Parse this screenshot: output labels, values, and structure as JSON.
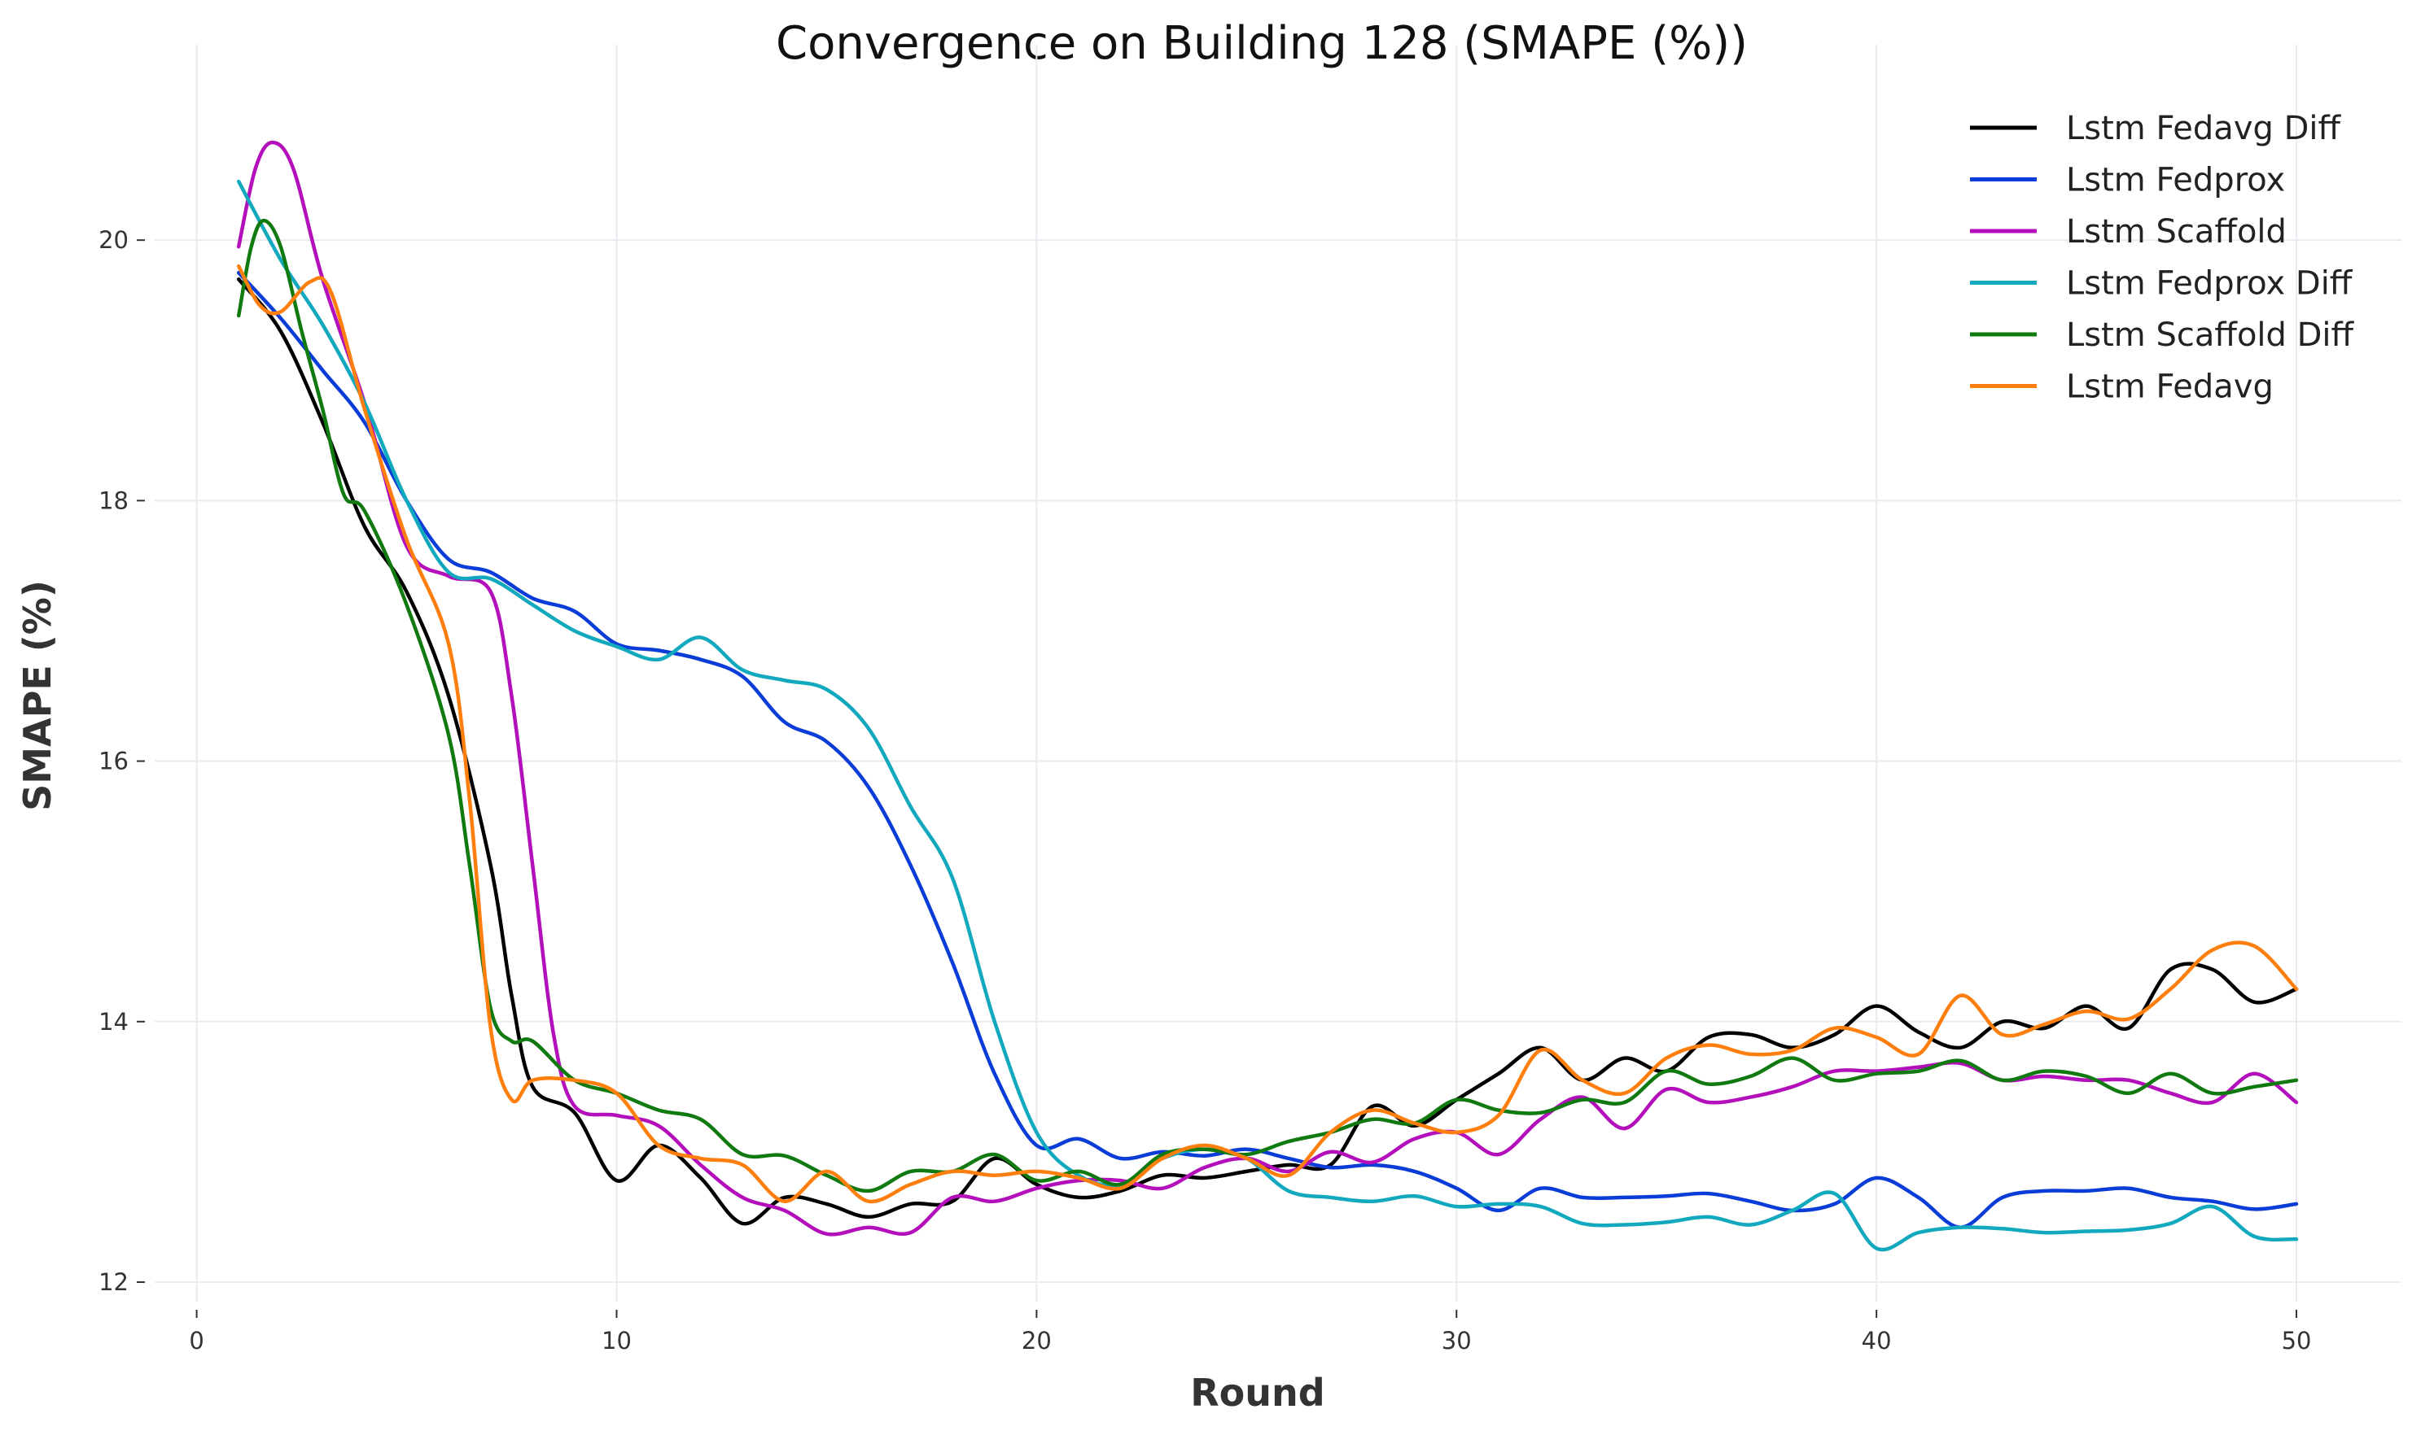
{
  "chart_data": {
    "type": "line",
    "title": "Convergence on Building 128 (SMAPE (%))",
    "xlabel": "Round",
    "ylabel": "SMAPE (%)",
    "xlim": [
      -1,
      52.5
    ],
    "ylim": [
      11.85,
      21.5
    ],
    "xticks": [
      0,
      10,
      20,
      30,
      40,
      50
    ],
    "yticks": [
      12,
      14,
      16,
      18,
      20
    ],
    "grid": true,
    "legend_position": "top-right",
    "series": [
      {
        "name": "Lstm Fedavg Diff",
        "color": "#000000",
        "values": [
          [
            1,
            19.7
          ],
          [
            2,
            19.3
          ],
          [
            3,
            18.6
          ],
          [
            4,
            17.8
          ],
          [
            5,
            17.3
          ],
          [
            6,
            16.5
          ],
          [
            7,
            15.2
          ],
          [
            7.5,
            14.2
          ],
          [
            8,
            13.5
          ],
          [
            9,
            13.3
          ],
          [
            10,
            12.78
          ],
          [
            11,
            13.05
          ],
          [
            12,
            12.8
          ],
          [
            13,
            12.45
          ],
          [
            14,
            12.65
          ],
          [
            15,
            12.6
          ],
          [
            16,
            12.5
          ],
          [
            17,
            12.6
          ],
          [
            18,
            12.62
          ],
          [
            19,
            12.95
          ],
          [
            20,
            12.75
          ],
          [
            21,
            12.65
          ],
          [
            22,
            12.7
          ],
          [
            23,
            12.82
          ],
          [
            24,
            12.8
          ],
          [
            25,
            12.85
          ],
          [
            26,
            12.9
          ],
          [
            27,
            12.9
          ],
          [
            28,
            13.35
          ],
          [
            29,
            13.2
          ],
          [
            30,
            13.4
          ],
          [
            31,
            13.6
          ],
          [
            32,
            13.8
          ],
          [
            33,
            13.55
          ],
          [
            34,
            13.72
          ],
          [
            35,
            13.62
          ],
          [
            36,
            13.88
          ],
          [
            37,
            13.9
          ],
          [
            38,
            13.8
          ],
          [
            39,
            13.9
          ],
          [
            40,
            14.12
          ],
          [
            41,
            13.92
          ],
          [
            42,
            13.8
          ],
          [
            43,
            14.0
          ],
          [
            44,
            13.95
          ],
          [
            45,
            14.12
          ],
          [
            46,
            13.95
          ],
          [
            47,
            14.4
          ],
          [
            48,
            14.4
          ],
          [
            49,
            14.15
          ],
          [
            50,
            14.25
          ]
        ]
      },
      {
        "name": "Lstm Fedprox",
        "color": "#0a3cd8",
        "values": [
          [
            1,
            19.75
          ],
          [
            2,
            19.4
          ],
          [
            3,
            19.0
          ],
          [
            4,
            18.6
          ],
          [
            5,
            18.0
          ],
          [
            6,
            17.55
          ],
          [
            7,
            17.45
          ],
          [
            8,
            17.25
          ],
          [
            9,
            17.15
          ],
          [
            10,
            16.9
          ],
          [
            11,
            16.85
          ],
          [
            12,
            16.78
          ],
          [
            13,
            16.65
          ],
          [
            14,
            16.3
          ],
          [
            15,
            16.15
          ],
          [
            16,
            15.8
          ],
          [
            17,
            15.2
          ],
          [
            18,
            14.45
          ],
          [
            19,
            13.6
          ],
          [
            20,
            13.05
          ],
          [
            21,
            13.1
          ],
          [
            22,
            12.95
          ],
          [
            23,
            13.0
          ],
          [
            24,
            12.97
          ],
          [
            25,
            13.02
          ],
          [
            26,
            12.95
          ],
          [
            27,
            12.88
          ],
          [
            28,
            12.9
          ],
          [
            29,
            12.85
          ],
          [
            30,
            12.72
          ],
          [
            31,
            12.55
          ],
          [
            32,
            12.72
          ],
          [
            33,
            12.65
          ],
          [
            34,
            12.65
          ],
          [
            35,
            12.66
          ],
          [
            36,
            12.68
          ],
          [
            37,
            12.62
          ],
          [
            38,
            12.55
          ],
          [
            39,
            12.6
          ],
          [
            40,
            12.8
          ],
          [
            41,
            12.65
          ],
          [
            42,
            12.42
          ],
          [
            43,
            12.65
          ],
          [
            44,
            12.7
          ],
          [
            45,
            12.7
          ],
          [
            46,
            12.72
          ],
          [
            47,
            12.65
          ],
          [
            48,
            12.62
          ],
          [
            49,
            12.56
          ],
          [
            50,
            12.6
          ]
        ]
      },
      {
        "name": "Lstm Scaffold",
        "color": "#b30fba",
        "values": [
          [
            1,
            19.95
          ],
          [
            1.4,
            20.55
          ],
          [
            1.8,
            20.75
          ],
          [
            2.3,
            20.55
          ],
          [
            3,
            19.7
          ],
          [
            4,
            18.75
          ],
          [
            5,
            17.65
          ],
          [
            6,
            17.42
          ],
          [
            7,
            17.3
          ],
          [
            7.5,
            16.5
          ],
          [
            8,
            15.2
          ],
          [
            8.5,
            13.9
          ],
          [
            9,
            13.35
          ],
          [
            10,
            13.28
          ],
          [
            11,
            13.2
          ],
          [
            12,
            12.9
          ],
          [
            13,
            12.65
          ],
          [
            14,
            12.55
          ],
          [
            15,
            12.37
          ],
          [
            16,
            12.42
          ],
          [
            17,
            12.38
          ],
          [
            18,
            12.65
          ],
          [
            19,
            12.62
          ],
          [
            20,
            12.72
          ],
          [
            21,
            12.78
          ],
          [
            22,
            12.78
          ],
          [
            23,
            12.72
          ],
          [
            24,
            12.88
          ],
          [
            25,
            12.95
          ],
          [
            26,
            12.85
          ],
          [
            27,
            13.0
          ],
          [
            28,
            12.92
          ],
          [
            29,
            13.1
          ],
          [
            30,
            13.15
          ],
          [
            31,
            12.98
          ],
          [
            32,
            13.25
          ],
          [
            33,
            13.42
          ],
          [
            34,
            13.18
          ],
          [
            35,
            13.48
          ],
          [
            36,
            13.38
          ],
          [
            37,
            13.42
          ],
          [
            38,
            13.5
          ],
          [
            39,
            13.62
          ],
          [
            40,
            13.62
          ],
          [
            41,
            13.65
          ],
          [
            42,
            13.68
          ],
          [
            43,
            13.55
          ],
          [
            44,
            13.58
          ],
          [
            45,
            13.55
          ],
          [
            46,
            13.55
          ],
          [
            47,
            13.45
          ],
          [
            48,
            13.38
          ],
          [
            49,
            13.6
          ],
          [
            50,
            13.38
          ]
        ]
      },
      {
        "name": "Lstm Fedprox Diff",
        "color": "#12a8bd",
        "values": [
          [
            1,
            20.45
          ],
          [
            2,
            19.85
          ],
          [
            3,
            19.35
          ],
          [
            4,
            18.75
          ],
          [
            5,
            18.0
          ],
          [
            6,
            17.45
          ],
          [
            7,
            17.4
          ],
          [
            8,
            17.2
          ],
          [
            9,
            17.0
          ],
          [
            10,
            16.88
          ],
          [
            11,
            16.78
          ],
          [
            12,
            16.95
          ],
          [
            13,
            16.7
          ],
          [
            14,
            16.62
          ],
          [
            15,
            16.55
          ],
          [
            16,
            16.25
          ],
          [
            17,
            15.65
          ],
          [
            18,
            15.1
          ],
          [
            19,
            14.0
          ],
          [
            20,
            13.15
          ],
          [
            21,
            12.82
          ],
          [
            22,
            12.75
          ],
          [
            23,
            12.95
          ],
          [
            24,
            13.02
          ],
          [
            25,
            12.95
          ],
          [
            26,
            12.7
          ],
          [
            27,
            12.65
          ],
          [
            28,
            12.62
          ],
          [
            29,
            12.66
          ],
          [
            30,
            12.58
          ],
          [
            31,
            12.6
          ],
          [
            32,
            12.58
          ],
          [
            33,
            12.45
          ],
          [
            34,
            12.44
          ],
          [
            35,
            12.46
          ],
          [
            36,
            12.5
          ],
          [
            37,
            12.44
          ],
          [
            38,
            12.55
          ],
          [
            39,
            12.68
          ],
          [
            40,
            12.26
          ],
          [
            41,
            12.38
          ],
          [
            42,
            12.42
          ],
          [
            43,
            12.41
          ],
          [
            44,
            12.38
          ],
          [
            45,
            12.39
          ],
          [
            46,
            12.4
          ],
          [
            47,
            12.45
          ],
          [
            48,
            12.58
          ],
          [
            49,
            12.35
          ],
          [
            50,
            12.33
          ]
        ]
      },
      {
        "name": "Lstm Scaffold Diff",
        "color": "#107a10",
        "values": [
          [
            1,
            19.42
          ],
          [
            1.3,
            19.95
          ],
          [
            1.6,
            20.15
          ],
          [
            2,
            19.95
          ],
          [
            2.5,
            19.3
          ],
          [
            3,
            18.7
          ],
          [
            3.5,
            18.05
          ],
          [
            4,
            17.92
          ],
          [
            5,
            17.2
          ],
          [
            6,
            16.2
          ],
          [
            6.5,
            15.2
          ],
          [
            7,
            14.1
          ],
          [
            7.5,
            13.85
          ],
          [
            8,
            13.85
          ],
          [
            9,
            13.55
          ],
          [
            10,
            13.45
          ],
          [
            11,
            13.32
          ],
          [
            12,
            13.25
          ],
          [
            13,
            12.98
          ],
          [
            14,
            12.97
          ],
          [
            15,
            12.82
          ],
          [
            16,
            12.7
          ],
          [
            17,
            12.85
          ],
          [
            18,
            12.85
          ],
          [
            19,
            12.98
          ],
          [
            20,
            12.78
          ],
          [
            21,
            12.85
          ],
          [
            22,
            12.75
          ],
          [
            23,
            12.98
          ],
          [
            24,
            13.02
          ],
          [
            25,
            12.98
          ],
          [
            26,
            13.08
          ],
          [
            27,
            13.15
          ],
          [
            28,
            13.25
          ],
          [
            29,
            13.22
          ],
          [
            30,
            13.4
          ],
          [
            31,
            13.32
          ],
          [
            32,
            13.3
          ],
          [
            33,
            13.4
          ],
          [
            34,
            13.38
          ],
          [
            35,
            13.62
          ],
          [
            36,
            13.52
          ],
          [
            37,
            13.58
          ],
          [
            38,
            13.72
          ],
          [
            39,
            13.55
          ],
          [
            40,
            13.6
          ],
          [
            41,
            13.62
          ],
          [
            42,
            13.7
          ],
          [
            43,
            13.55
          ],
          [
            44,
            13.62
          ],
          [
            45,
            13.58
          ],
          [
            46,
            13.45
          ],
          [
            47,
            13.6
          ],
          [
            48,
            13.45
          ],
          [
            49,
            13.5
          ],
          [
            50,
            13.55
          ]
        ]
      },
      {
        "name": "Lstm Fedavg",
        "color": "#ff7f0e",
        "values": [
          [
            1,
            19.8
          ],
          [
            1.5,
            19.5
          ],
          [
            2,
            19.45
          ],
          [
            2.7,
            19.68
          ],
          [
            3.2,
            19.6
          ],
          [
            4,
            18.7
          ],
          [
            5,
            17.7
          ],
          [
            6,
            16.9
          ],
          [
            6.5,
            15.7
          ],
          [
            7,
            13.95
          ],
          [
            7.5,
            13.4
          ],
          [
            8,
            13.55
          ],
          [
            9,
            13.55
          ],
          [
            10,
            13.45
          ],
          [
            11,
            13.05
          ],
          [
            12,
            12.95
          ],
          [
            13,
            12.9
          ],
          [
            14,
            12.62
          ],
          [
            15,
            12.85
          ],
          [
            16,
            12.62
          ],
          [
            17,
            12.75
          ],
          [
            18,
            12.85
          ],
          [
            19,
            12.82
          ],
          [
            20,
            12.85
          ],
          [
            21,
            12.8
          ],
          [
            22,
            12.72
          ],
          [
            23,
            12.95
          ],
          [
            24,
            13.05
          ],
          [
            25,
            12.95
          ],
          [
            26,
            12.82
          ],
          [
            27,
            13.15
          ],
          [
            28,
            13.32
          ],
          [
            29,
            13.22
          ],
          [
            30,
            13.15
          ],
          [
            31,
            13.28
          ],
          [
            32,
            13.78
          ],
          [
            33,
            13.55
          ],
          [
            34,
            13.45
          ],
          [
            35,
            13.72
          ],
          [
            36,
            13.82
          ],
          [
            37,
            13.75
          ],
          [
            38,
            13.78
          ],
          [
            39,
            13.95
          ],
          [
            40,
            13.88
          ],
          [
            41,
            13.75
          ],
          [
            42,
            14.2
          ],
          [
            43,
            13.9
          ],
          [
            44,
            13.98
          ],
          [
            45,
            14.08
          ],
          [
            46,
            14.02
          ],
          [
            47,
            14.25
          ],
          [
            48,
            14.55
          ],
          [
            49,
            14.58
          ],
          [
            50,
            14.25
          ]
        ]
      }
    ]
  }
}
